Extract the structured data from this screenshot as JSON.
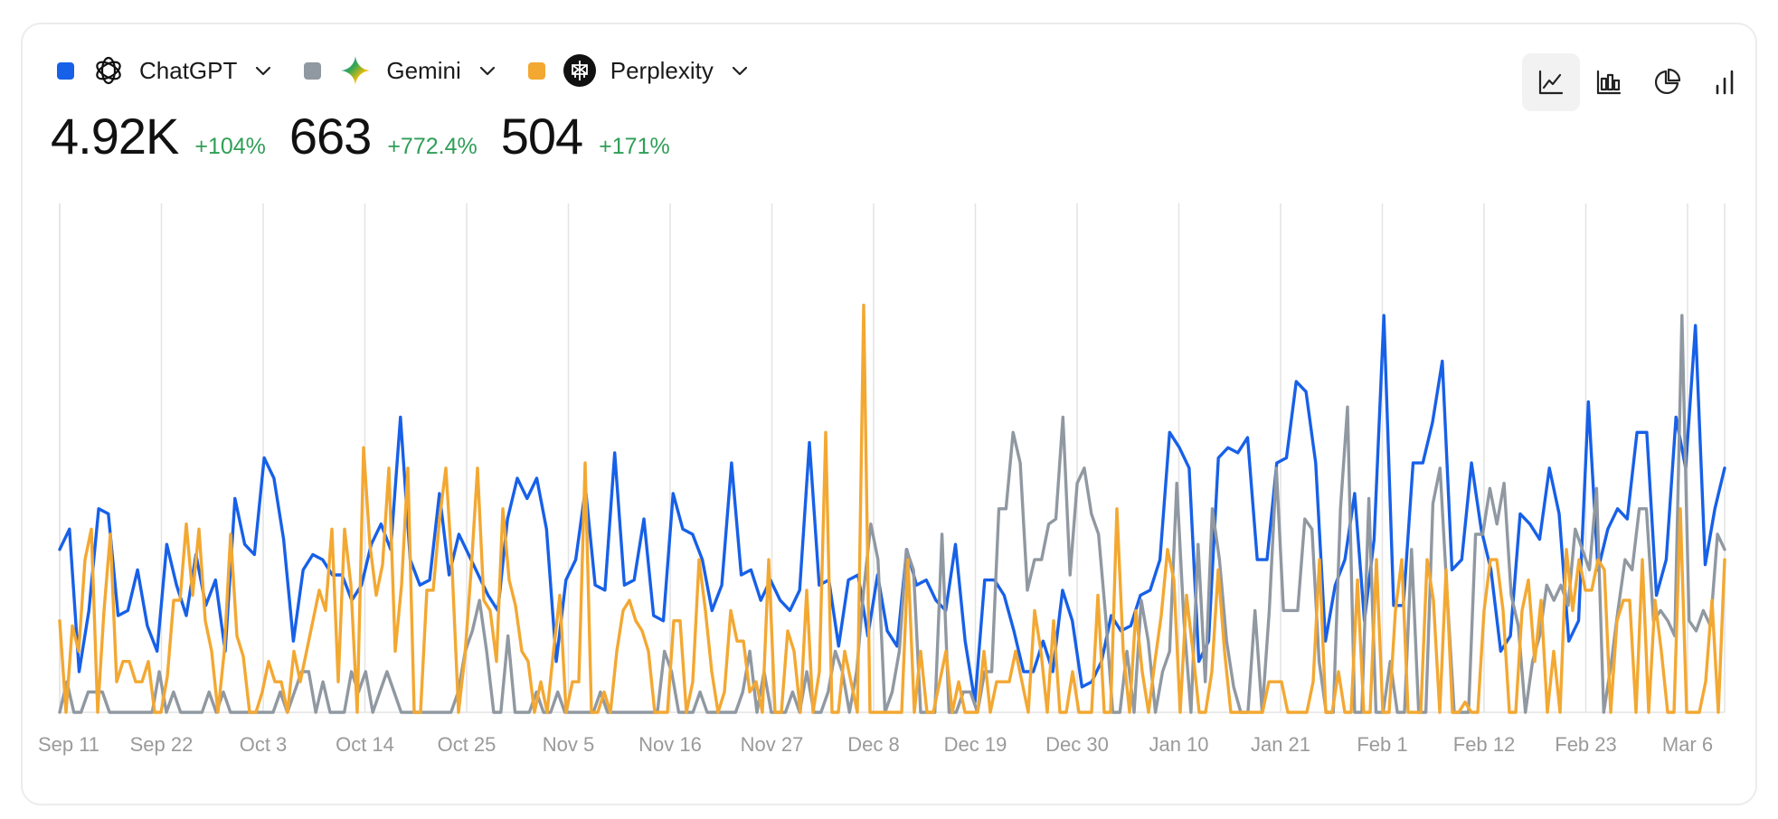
{
  "legend": [
    {
      "name": "ChatGPT",
      "color": "#1760e8",
      "icon": "chatgpt-logo-icon"
    },
    {
      "name": "Gemini",
      "color": "#9098a1",
      "icon": "gemini-logo-icon"
    },
    {
      "name": "Perplexity",
      "color": "#f3a832",
      "icon": "perplexity-logo-icon"
    }
  ],
  "stats": [
    {
      "value": "4.92K",
      "change": "+104%"
    },
    {
      "value": "663",
      "change": "+772.4%"
    },
    {
      "value": "504",
      "change": "+171%"
    }
  ],
  "toolbar": [
    {
      "name": "line-chart-icon",
      "active": true
    },
    {
      "name": "bar-chart-icon",
      "active": false
    },
    {
      "name": "pie-chart-icon",
      "active": false
    },
    {
      "name": "column-chart-icon",
      "active": false
    }
  ],
  "chart_data": {
    "type": "line",
    "title": "",
    "xlabel": "",
    "ylabel": "",
    "grid": "vertical",
    "x_ticks": [
      "Sep 11",
      "Sep 22",
      "Oct 3",
      "Oct 14",
      "Oct 25",
      "Nov 5",
      "Nov 16",
      "Nov 27",
      "Dec 8",
      "Dec 19",
      "Dec 30",
      "Jan 10",
      "Jan 21",
      "Feb 1",
      "Feb 12",
      "Feb 23",
      "Mar 6"
    ],
    "x_range_days": [
      0,
      183
    ],
    "ylim": [
      0,
      100
    ],
    "series": [
      {
        "name": "ChatGPT",
        "color": "#1760e8",
        "values": [
          32,
          36,
          8,
          20,
          40,
          39,
          19,
          20,
          28,
          17,
          12,
          33,
          25,
          19,
          31,
          21,
          26,
          12,
          42,
          33,
          31,
          50,
          46,
          34,
          14,
          28,
          31,
          30,
          27,
          27,
          22,
          25,
          33,
          37,
          32,
          58,
          30,
          25,
          26,
          43,
          27,
          35,
          31,
          27,
          23,
          20,
          38,
          46,
          42,
          46,
          36,
          10,
          26,
          30,
          44,
          25,
          24,
          51,
          25,
          26,
          38,
          19,
          18,
          43,
          36,
          35,
          30,
          20,
          25,
          49,
          27,
          28,
          22,
          26,
          22,
          20,
          24,
          53,
          25,
          26,
          13,
          26,
          27,
          15,
          27,
          16,
          13,
          32,
          25,
          26,
          22,
          20,
          33,
          14,
          2,
          26,
          26,
          23,
          16,
          8,
          8,
          14,
          8,
          24,
          18,
          5,
          6,
          10,
          19,
          16,
          17,
          23,
          24,
          30,
          55,
          52,
          48,
          10,
          14,
          50,
          52,
          51,
          54,
          30,
          30,
          49,
          50,
          65,
          63,
          49,
          14,
          25,
          30,
          43,
          18,
          34,
          78,
          21,
          21,
          49,
          49,
          57,
          69,
          28,
          30,
          49,
          36,
          28,
          12,
          15,
          39,
          37,
          34,
          48,
          39,
          14,
          18,
          61,
          28,
          36,
          40,
          38,
          55,
          55,
          23,
          30,
          58,
          48,
          76,
          29,
          40,
          48
        ]
      },
      {
        "name": "Gemini",
        "color": "#9098a1",
        "values": [
          0,
          6,
          0,
          0,
          4,
          4,
          4,
          0,
          0,
          0,
          0,
          0,
          0,
          0,
          8,
          0,
          4,
          0,
          0,
          0,
          0,
          4,
          0,
          4,
          0,
          0,
          0,
          0,
          0,
          0,
          0,
          4,
          0,
          4,
          8,
          8,
          0,
          6,
          0,
          0,
          0,
          8,
          4,
          8,
          0,
          4,
          8,
          4,
          0,
          0,
          0,
          0,
          0,
          0,
          0,
          0,
          4,
          12,
          16,
          22,
          12,
          0,
          0,
          15,
          0,
          0,
          0,
          4,
          0,
          0,
          4,
          0,
          0,
          0,
          0,
          0,
          4,
          0,
          0,
          0,
          0,
          0,
          0,
          0,
          0,
          12,
          8,
          0,
          0,
          0,
          4,
          0,
          0,
          0,
          0,
          0,
          4,
          12,
          0,
          8,
          0,
          0,
          0,
          4,
          0,
          8,
          0,
          0,
          4,
          12,
          8,
          0,
          8,
          24,
          37,
          30,
          0,
          4,
          12,
          32,
          28,
          0,
          0,
          0,
          35,
          0,
          0,
          4,
          4,
          0,
          8,
          8,
          40,
          40,
          55,
          49,
          24,
          30,
          30,
          37,
          38,
          58,
          27,
          45,
          48,
          39,
          35,
          19,
          0,
          0,
          12,
          0,
          22,
          14,
          0,
          8,
          12,
          45,
          18,
          0,
          33,
          6,
          40,
          30,
          14,
          5,
          0,
          0,
          20,
          0,
          20,
          48,
          20,
          20,
          20,
          38,
          36,
          10,
          0,
          0,
          40,
          60,
          0,
          0,
          42,
          0,
          0,
          10,
          0,
          0,
          32,
          0,
          0,
          41,
          48,
          23,
          0,
          0,
          0,
          35,
          35,
          44,
          37,
          45,
          23,
          17,
          0,
          10,
          15,
          25,
          22,
          25,
          21,
          36,
          32,
          28,
          44,
          0,
          9,
          20,
          30,
          28,
          40,
          40,
          18,
          20,
          18,
          15,
          78,
          18,
          16,
          20,
          17,
          35,
          32
        ]
      },
      {
        "name": "Perplexity",
        "color": "#f3a832",
        "values": [
          18,
          0,
          17,
          12,
          30,
          36,
          0,
          20,
          35,
          6,
          10,
          10,
          6,
          6,
          10,
          0,
          0,
          7,
          22,
          22,
          37,
          23,
          36,
          18,
          12,
          0,
          12,
          35,
          15,
          11,
          0,
          0,
          4,
          10,
          6,
          6,
          0,
          12,
          6,
          12,
          18,
          24,
          20,
          36,
          6,
          36,
          25,
          0,
          52,
          33,
          23,
          29,
          48,
          12,
          25,
          48,
          0,
          0,
          24,
          24,
          38,
          48,
          28,
          0,
          11,
          28,
          48,
          22,
          20,
          10,
          40,
          26,
          21,
          12,
          10,
          0,
          6,
          0,
          12,
          23,
          0,
          6,
          6,
          49,
          0,
          0,
          4,
          0,
          12,
          20,
          22,
          18,
          16,
          12,
          0,
          0,
          0,
          18,
          18,
          0,
          6,
          30,
          20,
          8,
          0,
          4,
          20,
          14,
          14,
          4,
          6,
          0,
          30,
          0,
          0,
          16,
          12,
          0,
          24,
          0,
          8,
          55,
          0,
          0,
          12,
          6,
          0,
          80,
          0,
          0,
          0,
          0,
          0,
          0,
          30,
          0,
          12,
          0,
          0,
          6,
          12,
          0,
          6,
          0,
          0,
          0,
          12,
          0,
          6,
          6,
          6,
          12,
          6,
          0,
          20,
          12,
          0,
          18,
          0,
          0,
          8,
          0,
          0,
          0,
          23,
          0,
          0,
          40,
          12,
          0,
          20,
          8,
          0,
          10,
          19,
          32,
          26,
          0,
          23,
          12,
          0,
          0,
          8,
          28,
          12,
          0,
          0,
          0,
          0,
          0,
          0,
          6,
          6,
          6,
          0,
          0,
          0,
          0,
          6,
          30,
          0,
          0,
          8,
          0,
          0,
          26,
          0,
          0,
          30,
          0,
          0,
          20,
          30,
          0,
          0,
          0,
          30,
          22,
          0,
          28,
          0,
          0,
          2,
          0,
          0,
          20,
          30,
          30,
          20,
          0,
          0,
          20,
          26,
          10,
          22,
          0,
          12,
          0,
          32,
          20,
          30,
          24,
          24,
          30,
          28,
          0,
          18,
          22,
          22,
          0,
          30,
          0,
          22,
          12,
          0,
          0,
          40,
          0,
          0,
          0,
          6,
          22,
          0,
          30
        ]
      }
    ]
  }
}
